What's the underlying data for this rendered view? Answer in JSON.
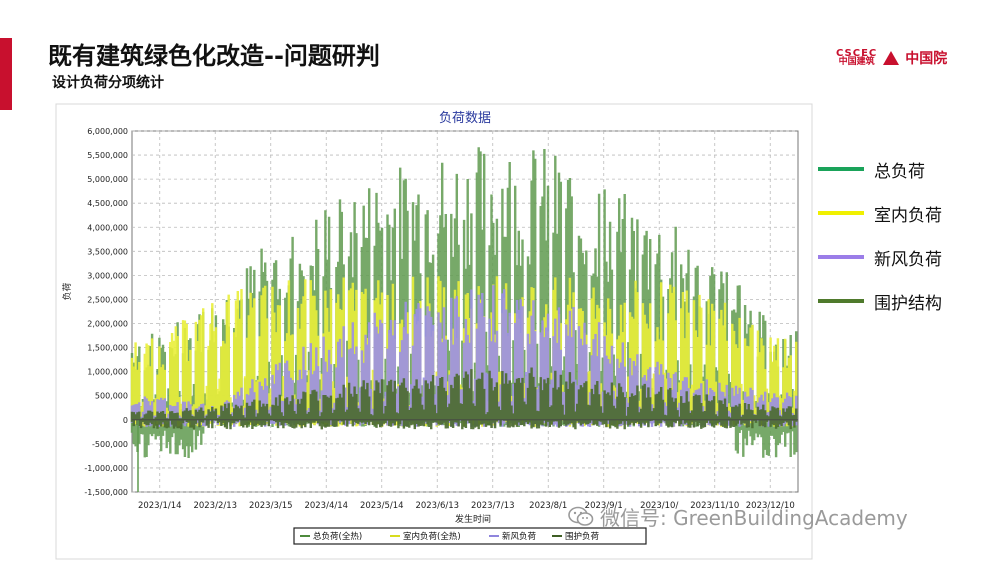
{
  "slide": {
    "title": "既有建筑绿色化改造--问题研判",
    "subtitle": "设计负荷分项统计"
  },
  "logo": {
    "cscec_top": "CSCEC",
    "cscec_bottom": "中国建筑",
    "name": "中国院"
  },
  "watermark": {
    "text": "微信号: GreenBuildingAcademy",
    "icon": "wechat-icon"
  },
  "colors": {
    "accent": "#c8102e",
    "total": "#5f9a4f",
    "indoor": "#e9ee3a",
    "fresh_air": "#9b8fe6",
    "envelope": "#4a6a2e"
  },
  "legend_right": [
    {
      "label": "总负荷",
      "color": "#1aa35a"
    },
    {
      "label": "室内负荷",
      "color": "#f0f000"
    },
    {
      "label": "新风负荷",
      "color": "#9b7de8"
    },
    {
      "label": "围护结构",
      "color": "#4f7a2c"
    }
  ],
  "chart_data": {
    "type": "area",
    "title": "负荷数据",
    "xlabel": "发生时间",
    "ylabel": "负荷",
    "ylim": [
      -1500000,
      6000000
    ],
    "yticks": [
      {
        "v": 6000000,
        "label": "6,000,000"
      },
      {
        "v": 5500000,
        "label": "5,500,000"
      },
      {
        "v": 5000000,
        "label": "5,000,000"
      },
      {
        "v": 4500000,
        "label": "4,500,000"
      },
      {
        "v": 4000000,
        "label": "4,000,000"
      },
      {
        "v": 3500000,
        "label": "3,500,000"
      },
      {
        "v": 3000000,
        "label": "3,000,000"
      },
      {
        "v": 2500000,
        "label": "2,500,000"
      },
      {
        "v": 2000000,
        "label": "2,000,000"
      },
      {
        "v": 1500000,
        "label": "1,500,000"
      },
      {
        "v": 1000000,
        "label": "1,000,000"
      },
      {
        "v": 500000,
        "label": "500,000"
      },
      {
        "v": 0,
        "label": "0"
      },
      {
        "v": -500000,
        "label": "-500,000"
      },
      {
        "v": -1000000,
        "label": "-1,000,000"
      },
      {
        "v": -1500000,
        "label": "-1,500,000"
      }
    ],
    "xticks": [
      "2023/1/14",
      "2023/2/13",
      "2023/3/15",
      "2023/4/14",
      "2023/5/14",
      "2023/6/13",
      "2023/7/13",
      "2023/8/1",
      "2023/9/1",
      "2023/10/",
      "2023/11/10",
      "2023/12/10"
    ],
    "grid": true,
    "legend_bottom": [
      "总负荷(全热)",
      "室内负荷(全热)",
      "新风负荷",
      "围护负荷"
    ],
    "months": [
      "Jan",
      "Feb",
      "Mar",
      "Apr",
      "May",
      "Jun",
      "Jul",
      "Aug",
      "Sep",
      "Oct",
      "Nov",
      "Dec"
    ],
    "series": [
      {
        "name": "总负荷(全热)",
        "monthly_peak": [
          1800000,
          2600000,
          3800000,
          4600000,
          5200000,
          5600000,
          5800000,
          5700000,
          5000000,
          4300000,
          3500000,
          2000000
        ]
      },
      {
        "name": "室内负荷(全热)",
        "monthly_peak": [
          1700000,
          2600000,
          2900000,
          3000000,
          3000000,
          3000000,
          3000000,
          3000000,
          2900000,
          2900000,
          2700000,
          1800000
        ]
      },
      {
        "name": "新风负荷",
        "monthly_peak": [
          500000,
          300000,
          1200000,
          1800000,
          2300000,
          2700000,
          2900000,
          2800000,
          2000000,
          1200000,
          800000,
          600000
        ]
      },
      {
        "name": "围护负荷",
        "monthly_peak": [
          200000,
          300000,
          500000,
          700000,
          900000,
          1000000,
          1100000,
          1100000,
          900000,
          700000,
          500000,
          300000
        ]
      }
    ],
    "minimum": -1500000
  }
}
